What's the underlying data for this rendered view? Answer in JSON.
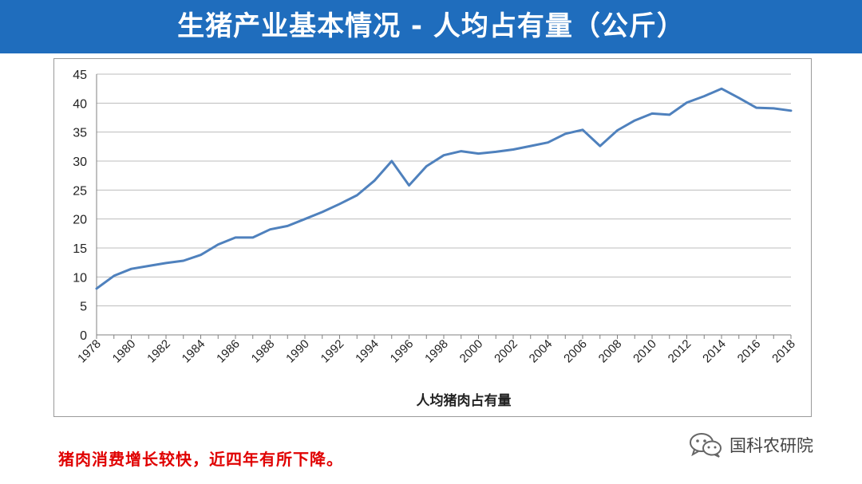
{
  "header": {
    "title": "生猪产业基本情况 - 人均占有量（公斤）"
  },
  "chart_data": {
    "type": "line",
    "title": "",
    "xlabel": "人均猪肉占有量",
    "ylabel": "",
    "ylim": [
      0,
      45
    ],
    "yticks": [
      0,
      5,
      10,
      15,
      20,
      25,
      30,
      35,
      40,
      45
    ],
    "xtick_labels": [
      "1978",
      "1980",
      "1982",
      "1984",
      "1986",
      "1988",
      "1990",
      "1992",
      "1994",
      "1996",
      "1998",
      "2000",
      "2002",
      "2004",
      "2006",
      "2008",
      "2010",
      "2012",
      "2014",
      "2016",
      "2018"
    ],
    "grid": true,
    "legend": "none",
    "color": "#4f81bd",
    "x": [
      1978,
      1979,
      1980,
      1981,
      1982,
      1983,
      1984,
      1985,
      1986,
      1987,
      1988,
      1989,
      1990,
      1991,
      1992,
      1993,
      1994,
      1995,
      1996,
      1997,
      1998,
      1999,
      2000,
      2001,
      2002,
      2003,
      2004,
      2005,
      2006,
      2007,
      2008,
      2009,
      2010,
      2011,
      2012,
      2013,
      2014,
      2015,
      2016,
      2017,
      2018
    ],
    "series": [
      {
        "values": [
          8.0,
          10.2,
          11.4,
          11.9,
          12.4,
          12.8,
          13.8,
          15.6,
          16.8,
          16.8,
          18.2,
          18.8,
          20.0,
          21.2,
          22.6,
          24.1,
          26.6,
          30.0,
          25.8,
          29.1,
          31.0,
          31.7,
          31.3,
          31.6,
          32.0,
          32.6,
          33.2,
          34.7,
          35.4,
          32.6,
          35.3,
          37.0,
          38.2,
          38.0,
          40.1,
          41.2,
          42.5,
          40.9,
          39.2,
          39.1,
          38.7
        ]
      }
    ]
  },
  "footer": {
    "note": "猪肉消费增长较快，近四年有所下降。"
  },
  "watermark": {
    "label": "国科农研院",
    "icon": "wechat-icon"
  }
}
